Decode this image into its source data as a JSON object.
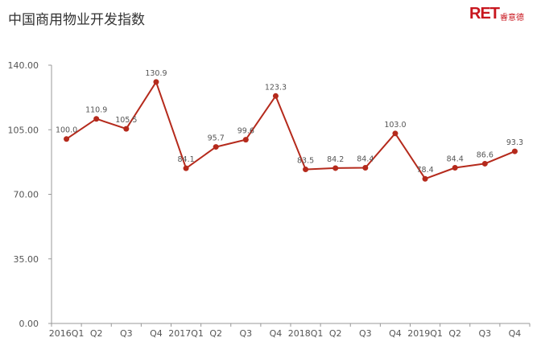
{
  "page": {
    "title": "中国商用物业开发指数",
    "logo": {
      "brand": "RET",
      "cn": "睿意德"
    }
  },
  "colors": {
    "line": "#b52a1c",
    "axis": "#999999",
    "text": "#555555",
    "logo": "#c8161e"
  },
  "chart_data": {
    "type": "line",
    "title": "中国商用物业开发指数",
    "categories": [
      "2016Q1",
      "Q2",
      "Q3",
      "Q4",
      "2017Q1",
      "Q2",
      "Q3",
      "Q4",
      "2018Q1",
      "Q2",
      "Q3",
      "Q4",
      "2019Q1",
      "Q2",
      "Q3",
      "Q4"
    ],
    "series": [
      {
        "values": [
          100.0,
          110.9,
          105.5,
          130.9,
          84.1,
          95.7,
          99.6,
          123.3,
          83.5,
          84.2,
          84.4,
          103.0,
          78.4,
          84.4,
          86.6,
          93.3
        ]
      }
    ],
    "data_labels": [
      "100.0",
      "110.9",
      "105.5",
      "130.9",
      "84.1",
      "95.7",
      "99.6",
      "123.3",
      "83.5",
      "84.2",
      "84.4",
      "103.0",
      "78.4",
      "84.4",
      "86.6",
      "93.3"
    ],
    "ylim": [
      0,
      140
    ],
    "yticks": [
      "0.00",
      "35.00",
      "70.00",
      "105.00",
      "140.00"
    ],
    "ytick_values": [
      0,
      35,
      70,
      105,
      140
    ],
    "grid": false,
    "legend": "none",
    "xlabel": "",
    "ylabel": ""
  }
}
